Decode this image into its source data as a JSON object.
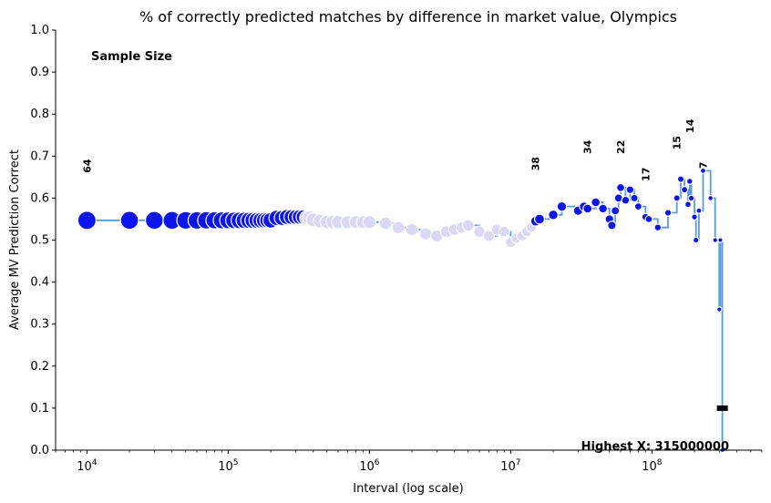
{
  "chart_data": {
    "type": "scatter",
    "title": "% of correctly predicted matches by difference in market value, Olympics",
    "xlabel": "Interval (log scale)",
    "ylabel": "Average MV Prediction Correct",
    "xscale": "log",
    "xlim": [
      6000,
      600000000
    ],
    "ylim": [
      0,
      1.0
    ],
    "grid": false,
    "legend": "none",
    "yticks": [
      "0.0",
      "0.1",
      "0.2",
      "0.3",
      "0.4",
      "0.5",
      "0.6",
      "0.7",
      "0.8",
      "0.9",
      "1.0"
    ],
    "xticks": [
      {
        "base": "10",
        "exp": "4",
        "value": 10000
      },
      {
        "base": "10",
        "exp": "5",
        "value": 100000
      },
      {
        "base": "10",
        "exp": "6",
        "value": 1000000
      },
      {
        "base": "10",
        "exp": "7",
        "value": 10000000
      },
      {
        "base": "10",
        "exp": "8",
        "value": 100000000
      }
    ],
    "annotation_header": "Sample Size",
    "highest_x_label": "Highest X: 315000000",
    "colors": {
      "line": "#5b9bd5",
      "point_dark": "#0a14ee",
      "point_light": "#d9d9f7",
      "highlight": "#ff0000"
    },
    "points": [
      [
        10000,
        0.547
      ],
      [
        20000,
        0.547
      ],
      [
        30000,
        0.547
      ],
      [
        40000,
        0.547
      ],
      [
        50000,
        0.547
      ],
      [
        60000,
        0.547
      ],
      [
        70000,
        0.547
      ],
      [
        80000,
        0.547
      ],
      [
        90000,
        0.547
      ],
      [
        100000,
        0.547
      ],
      [
        110000,
        0.547
      ],
      [
        120000,
        0.547
      ],
      [
        130000,
        0.547
      ],
      [
        140000,
        0.547
      ],
      [
        150000,
        0.547
      ],
      [
        160000,
        0.547
      ],
      [
        170000,
        0.547
      ],
      [
        180000,
        0.547
      ],
      [
        190000,
        0.547
      ],
      [
        200000,
        0.547
      ],
      [
        220000,
        0.553
      ],
      [
        240000,
        0.553
      ],
      [
        260000,
        0.555
      ],
      [
        280000,
        0.555
      ],
      [
        300000,
        0.555
      ],
      [
        320000,
        0.555
      ],
      [
        340000,
        0.555
      ],
      [
        360000,
        0.553
      ],
      [
        380000,
        0.553
      ],
      [
        400000,
        0.548
      ],
      [
        450000,
        0.545
      ],
      [
        500000,
        0.543
      ],
      [
        550000,
        0.543
      ],
      [
        600000,
        0.543
      ],
      [
        700000,
        0.543
      ],
      [
        800000,
        0.543
      ],
      [
        900000,
        0.543
      ],
      [
        1000000,
        0.543
      ],
      [
        1300000,
        0.54
      ],
      [
        1600000,
        0.53
      ],
      [
        2000000,
        0.525
      ],
      [
        2500000,
        0.515
      ],
      [
        3000000,
        0.51
      ],
      [
        3500000,
        0.52
      ],
      [
        4000000,
        0.525
      ],
      [
        4500000,
        0.53
      ],
      [
        5000000,
        0.535
      ],
      [
        6000000,
        0.52
      ],
      [
        7000000,
        0.51
      ],
      [
        8000000,
        0.525
      ],
      [
        9000000,
        0.52
      ],
      [
        10000000,
        0.495
      ],
      [
        11000000,
        0.505
      ],
      [
        12000000,
        0.51
      ],
      [
        13000000,
        0.52
      ],
      [
        14000000,
        0.53
      ],
      [
        15000000,
        0.545
      ],
      [
        16000000,
        0.55
      ],
      [
        20000000,
        0.56
      ],
      [
        23000000,
        0.58
      ],
      [
        30000000,
        0.57
      ],
      [
        33000000,
        0.58
      ],
      [
        35000000,
        0.575
      ],
      [
        40000000,
        0.59
      ],
      [
        45000000,
        0.575
      ],
      [
        50000000,
        0.55
      ],
      [
        52000000,
        0.535
      ],
      [
        55000000,
        0.57
      ],
      [
        58000000,
        0.6
      ],
      [
        60000000,
        0.625
      ],
      [
        65000000,
        0.595
      ],
      [
        70000000,
        0.62
      ],
      [
        75000000,
        0.6
      ],
      [
        80000000,
        0.58
      ],
      [
        90000000,
        0.555
      ],
      [
        95000000,
        0.55
      ],
      [
        110000000,
        0.53
      ],
      [
        130000000,
        0.565
      ],
      [
        150000000,
        0.6
      ],
      [
        160000000,
        0.645
      ],
      [
        170000000,
        0.62
      ],
      [
        180000000,
        0.585
      ],
      [
        185000000,
        0.64
      ],
      [
        190000000,
        0.6
      ],
      [
        200000000,
        0.555
      ],
      [
        205000000,
        0.5
      ],
      [
        215000000,
        0.57
      ],
      [
        230000000,
        0.665
      ],
      [
        260000000,
        0.6
      ],
      [
        280000000,
        0.5
      ],
      [
        300000000,
        0.335
      ],
      [
        305000000,
        0.5
      ],
      [
        315000000,
        0.0
      ]
    ],
    "sample_labels": [
      {
        "x": 10000,
        "y": 0.66,
        "text": "64"
      },
      {
        "x": 15000000,
        "y": 0.665,
        "text": "38"
      },
      {
        "x": 35000000,
        "y": 0.705,
        "text": "34"
      },
      {
        "x": 60000000,
        "y": 0.705,
        "text": "22"
      },
      {
        "x": 90000000,
        "y": 0.64,
        "text": "17"
      },
      {
        "x": 150000000,
        "y": 0.715,
        "text": "15"
      },
      {
        "x": 185000000,
        "y": 0.755,
        "text": "14"
      },
      {
        "x": 230000000,
        "y": 0.67,
        "text": "7"
      }
    ]
  }
}
